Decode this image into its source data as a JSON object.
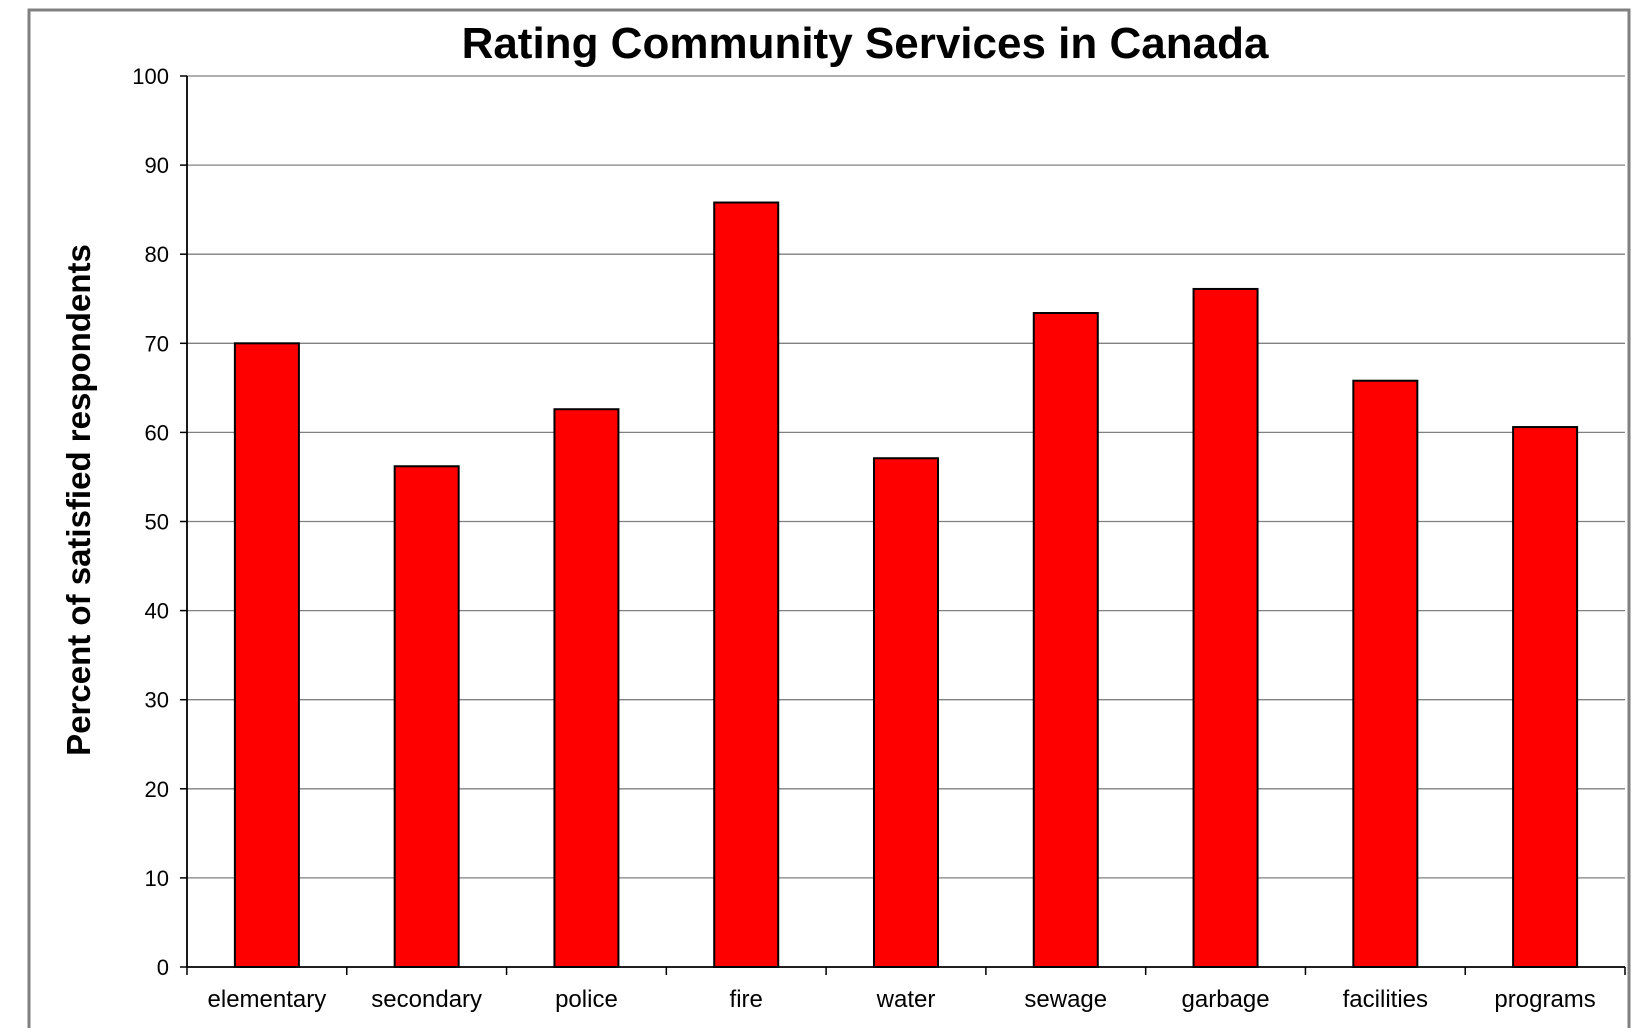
{
  "chart_data": {
    "type": "bar",
    "title": "Rating Community Services in Canada",
    "xlabel": "",
    "ylabel": "Percent of satisfied respondents",
    "categories": [
      "elementary",
      "secondary",
      "police",
      "fire",
      "water",
      "sewage",
      "garbage",
      "facilities",
      "programs"
    ],
    "values": [
      70,
      56.2,
      62.6,
      85.8,
      57.1,
      73.4,
      76.1,
      65.8,
      60.6
    ],
    "ylim": [
      0,
      100
    ],
    "yticks": [
      "0",
      "10",
      "20",
      "30",
      "40",
      "50",
      "60",
      "70",
      "80",
      "90",
      "100"
    ],
    "grid": true,
    "legend": "none",
    "bar_color": "#ff0000",
    "bar_stroke": "#000000",
    "gridline_color": "#808080",
    "frame_color": "#808080"
  }
}
